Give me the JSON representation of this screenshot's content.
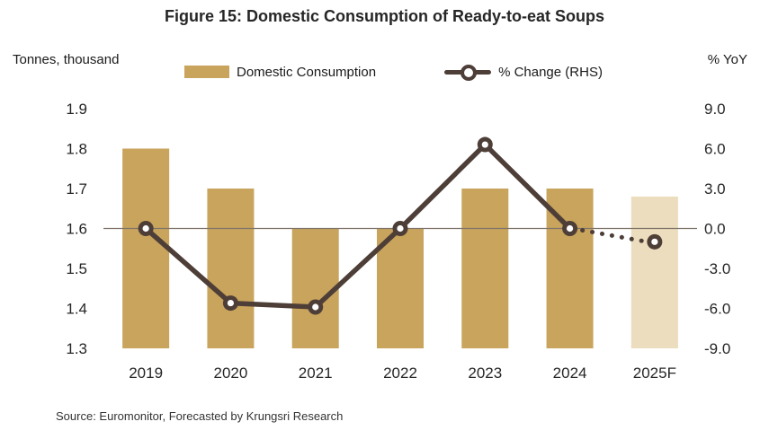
{
  "title": "Figure 15: Domestic Consumption of Ready-to-eat Soups",
  "left_axis_unit": "Tonnes, thousand",
  "right_axis_unit": "% YoY",
  "legend": {
    "bar_label": "Domestic Consumption",
    "line_label": "% Change (RHS)"
  },
  "source": "Source: Euromonitor, Forecasted by Krungsri Research",
  "colors": {
    "bar": "#C9A45C",
    "bar_forecast": "#EBDDBD",
    "line": "#4E3E38",
    "zero_line": "#7F7468",
    "text": "#262626"
  },
  "chart_data": {
    "type": "bar+line",
    "categories": [
      "2019",
      "2020",
      "2021",
      "2022",
      "2023",
      "2024",
      "2025F"
    ],
    "series": [
      {
        "name": "Domestic Consumption",
        "type": "bar",
        "axis": "left",
        "values": [
          1.8,
          1.7,
          1.6,
          1.6,
          1.7,
          1.7,
          1.68
        ]
      },
      {
        "name": "% Change (RHS)",
        "type": "line",
        "axis": "right",
        "values": [
          0.0,
          -5.6,
          -5.9,
          0.0,
          6.3,
          0.0,
          -1.0
        ],
        "dotted_from_index": 5
      }
    ],
    "left_axis": {
      "label": "Tonnes, thousand",
      "min": 1.3,
      "max": 1.9,
      "ticks": [
        "1.9",
        "1.8",
        "1.7",
        "1.6",
        "1.5",
        "1.4",
        "1.3"
      ]
    },
    "right_axis": {
      "label": "% YoY",
      "min": -9.0,
      "max": 9.0,
      "ticks": [
        "9.0",
        "6.0",
        "3.0",
        "0.0",
        "-3.0",
        "-6.0",
        "-9.0"
      ]
    },
    "forecast_category": "2025F",
    "zero_line": true,
    "grid": false,
    "legend_position": "top-center"
  }
}
